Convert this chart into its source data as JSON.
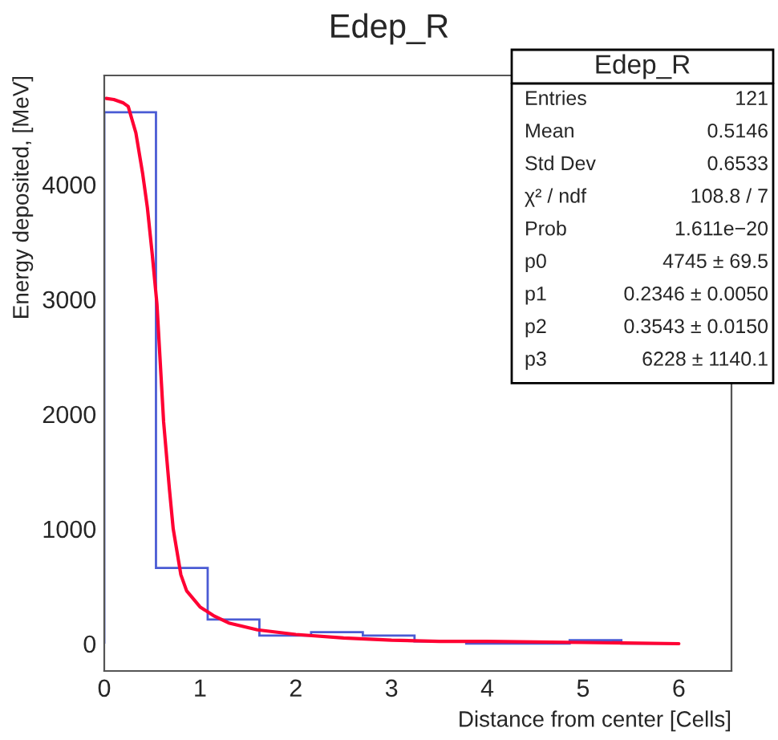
{
  "chart_data": {
    "type": "histogram",
    "title": "Edep_R",
    "xlabel": "Distance from center [Cells]",
    "ylabel": "Energy deposited, [MeV]",
    "bins": [
      0,
      0.54,
      1.08,
      1.62,
      2.16,
      2.7,
      3.24,
      3.78,
      4.32,
      4.86,
      5.4,
      5.94
    ],
    "values": [
      4630,
      660,
      210,
      70,
      100,
      70,
      20,
      0,
      0,
      30,
      0
    ],
    "color": "#4a5bd4",
    "series": [
      {
        "type": "line",
        "color": "#ff0033",
        "x": [
          0.02,
          0.1,
          0.2,
          0.25,
          0.33,
          0.4,
          0.45,
          0.5,
          0.55,
          0.62,
          0.68,
          0.72,
          0.8,
          0.86,
          1.0,
          1.15,
          1.3,
          1.6,
          2.0,
          2.5,
          3.0,
          3.5,
          4.0,
          5.0,
          6.0
        ],
        "values": [
          4750,
          4740,
          4710,
          4680,
          4450,
          4100,
          3800,
          3400,
          2960,
          1930,
          1350,
          1000,
          600,
          460,
          320,
          240,
          180,
          120,
          80,
          50,
          30,
          20,
          20,
          10,
          0
        ]
      }
    ],
    "xlim": [
      0,
      6.55
    ],
    "ylim": [
      -238,
      4950
    ],
    "xticks": [
      0,
      1,
      2,
      3,
      4,
      5,
      6
    ],
    "yticks": [
      0,
      1000,
      2000,
      3000,
      4000
    ],
    "grid": false,
    "annotations": [
      "Edep_R",
      "Entries",
      "121",
      "Mean",
      "0.5146",
      "Std Dev",
      "0.6533",
      "χ² / ndf",
      "108.8 / 7",
      "Prob",
      "1.611e−20",
      "p0",
      "4745 ± 69.5",
      "p1",
      "0.2346 ± 0.0050",
      "p2",
      "0.3543 ± 0.0150",
      "p3",
      "6228 ± 1140.1"
    ]
  }
}
